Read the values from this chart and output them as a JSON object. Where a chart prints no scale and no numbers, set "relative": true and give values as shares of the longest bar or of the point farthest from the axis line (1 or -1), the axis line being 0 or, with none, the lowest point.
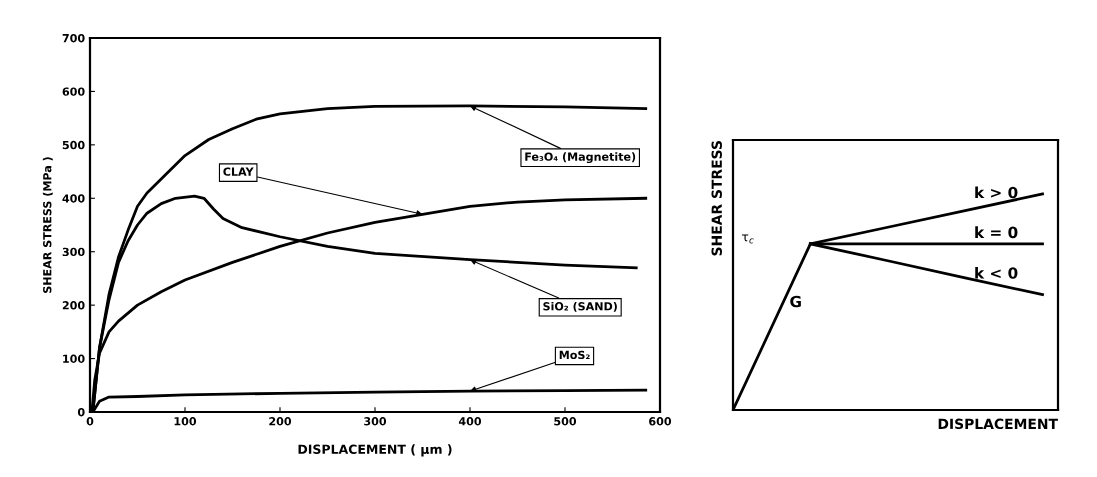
{
  "chart_data": [
    {
      "type": "line",
      "xlabel": "DISPLACEMENT ( μm )",
      "ylabel": "SHEAR STRESS (MPa )",
      "xlim": [
        0,
        600
      ],
      "xticks": [
        0,
        100,
        200,
        300,
        400,
        500,
        600
      ],
      "ylim": [
        0,
        700
      ],
      "yticks": [
        0,
        100,
        200,
        300,
        400,
        500,
        600,
        700
      ],
      "grid": false,
      "legend": false,
      "marker": "none",
      "line_style": "solid",
      "series": [
        {
          "name": "Fe₃O₄ (Magnetite)",
          "color": "#000000",
          "x": [
            3,
            10,
            20,
            30,
            40,
            50,
            60,
            80,
            100,
            125,
            150,
            175,
            200,
            250,
            300,
            400,
            500,
            585
          ],
          "values": [
            0,
            120,
            220,
            290,
            340,
            385,
            410,
            445,
            480,
            510,
            530,
            548,
            558,
            568,
            572,
            573,
            571,
            568
          ]
        },
        {
          "name": "CLAY",
          "color": "#000000",
          "x": [
            2,
            5,
            10,
            20,
            30,
            50,
            75,
            100,
            150,
            200,
            250,
            300,
            350,
            400,
            450,
            500,
            585
          ],
          "values": [
            0,
            60,
            110,
            150,
            170,
            200,
            225,
            247,
            280,
            310,
            335,
            355,
            370,
            385,
            393,
            397,
            400
          ]
        },
        {
          "name": "SiO₂ (SAND)",
          "color": "#000000",
          "x": [
            3,
            10,
            20,
            30,
            40,
            50,
            60,
            75,
            90,
            110,
            120,
            130,
            140,
            160,
            200,
            250,
            300,
            400,
            500,
            575
          ],
          "values": [
            0,
            120,
            210,
            280,
            320,
            350,
            372,
            390,
            400,
            404,
            400,
            380,
            362,
            345,
            328,
            310,
            297,
            285,
            275,
            270
          ]
        },
        {
          "name": "MoS₂",
          "color": "#000000",
          "x": [
            3,
            10,
            20,
            50,
            100,
            200,
            300,
            400,
            500,
            585
          ],
          "values": [
            0,
            20,
            28,
            29,
            32,
            35,
            37,
            39,
            40,
            41
          ]
        }
      ]
    },
    {
      "type": "line",
      "relative": true,
      "xlabel": "DISPLACEMENT",
      "ylabel": "SHEAR STRESS",
      "categories": [
        null,
        null,
        null,
        null,
        null
      ],
      "tick_labels": false,
      "grid": false,
      "legend": false,
      "marker": "none",
      "line_style": "solid",
      "annotations": [
        "τ$_{c}$"
      ],
      "series": [
        {
          "name": "G",
          "color": "#000000",
          "values": [
            0,
            0.769,
            null,
            null,
            null
          ]
        },
        {
          "name": "k > 0",
          "color": "#000000",
          "values": [
            null,
            0.769,
            0.846,
            0.923,
            1
          ]
        },
        {
          "name": "k = 0",
          "color": "#000000",
          "values": [
            null,
            0.769,
            0.769,
            0.769,
            0.769
          ]
        },
        {
          "name": "k < 0",
          "color": "#000000",
          "values": [
            null,
            0.769,
            0.691,
            0.612,
            0.534
          ]
        }
      ]
    }
  ]
}
